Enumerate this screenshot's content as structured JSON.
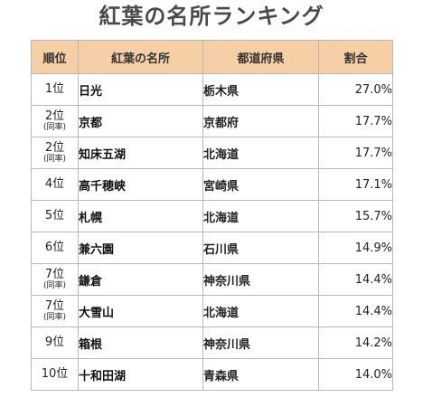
{
  "title": "紅葉の名所ランキング",
  "colors": {
    "header_bg": "#f7cfa6",
    "border": "#b8b8b8",
    "title_text": "#4a4a4a"
  },
  "table": {
    "headers": {
      "rank": "順位",
      "name": "紅葉の名所",
      "prefecture": "都道府県",
      "share": "割合"
    },
    "rows": [
      {
        "rank": "1位",
        "tie": "",
        "name": "日光",
        "prefecture": "栃木県",
        "share": "27.0%"
      },
      {
        "rank": "2位",
        "tie": "(同率)",
        "name": "京都",
        "prefecture": "京都府",
        "share": "17.7%"
      },
      {
        "rank": "2位",
        "tie": "(同率)",
        "name": "知床五湖",
        "prefecture": "北海道",
        "share": "17.7%"
      },
      {
        "rank": "4位",
        "tie": "",
        "name": "高千穂峡",
        "prefecture": "宮崎県",
        "share": "17.1%"
      },
      {
        "rank": "5位",
        "tie": "",
        "name": "札幌",
        "prefecture": "北海道",
        "share": "15.7%"
      },
      {
        "rank": "6位",
        "tie": "",
        "name": "兼六園",
        "prefecture": "石川県",
        "share": "14.9%"
      },
      {
        "rank": "7位",
        "tie": "(同率)",
        "name": "鎌倉",
        "prefecture": "神奈川県",
        "share": "14.4%"
      },
      {
        "rank": "7位",
        "tie": "(同率)",
        "name": "大雪山",
        "prefecture": "北海道",
        "share": "14.4%"
      },
      {
        "rank": "9位",
        "tie": "",
        "name": "箱根",
        "prefecture": "神奈川県",
        "share": "14.2%"
      },
      {
        "rank": "10位",
        "tie": "",
        "name": "十和田湖",
        "prefecture": "青森県",
        "share": "14.0%"
      }
    ]
  }
}
